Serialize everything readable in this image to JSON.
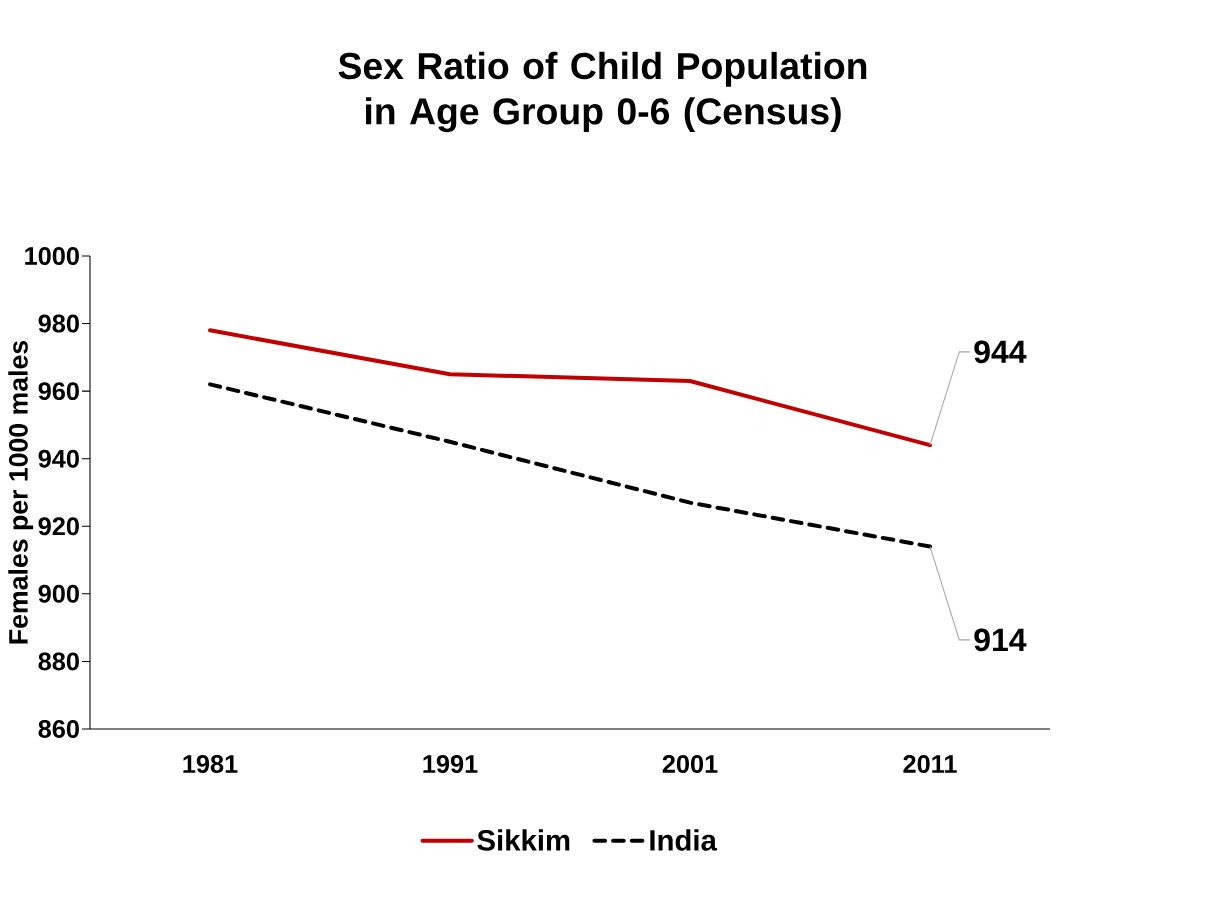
{
  "chart_data": {
    "type": "line",
    "title": "Sex Ratio of Child Population in Age Group 0-6 (Census)",
    "ylabel": "Females per 1000 males",
    "categories": [
      "1981",
      "1991",
      "2001",
      "2011"
    ],
    "series": [
      {
        "name": "Sikkim",
        "color": "#c00000",
        "line_style": "solid",
        "values": [
          978,
          965,
          963,
          944
        ]
      },
      {
        "name": "India",
        "color": "#000000",
        "line_style": "dashed",
        "values": [
          962,
          945,
          927,
          914
        ]
      }
    ],
    "ylim": [
      860,
      1000
    ],
    "yticks": [
      860,
      880,
      900,
      920,
      940,
      960,
      980,
      1000
    ],
    "legend": "bottom",
    "marker": "none",
    "annotations": [
      {
        "text": "944",
        "x": "2011",
        "y": 944
      },
      {
        "text": "914",
        "x": "2011",
        "y": 914
      }
    ]
  }
}
